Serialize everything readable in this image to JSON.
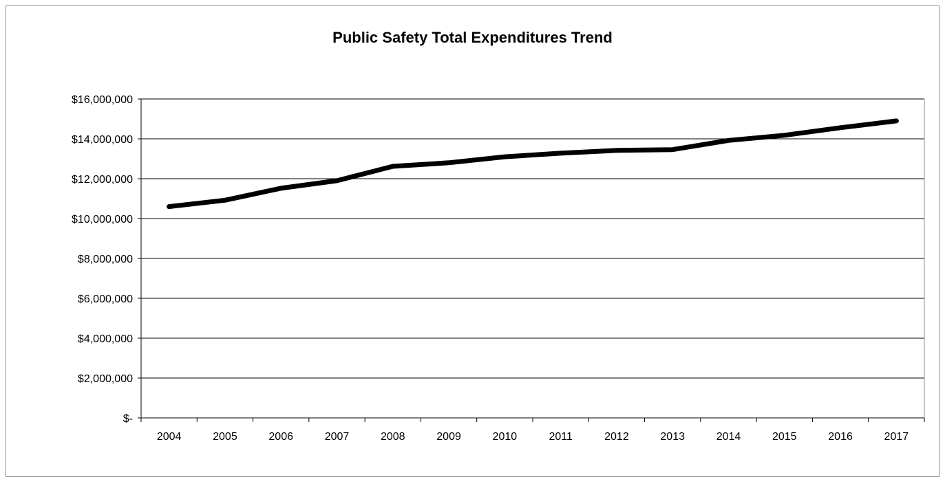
{
  "chart_data": {
    "type": "line",
    "title": "Public Safety Total Expenditures Trend",
    "xlabel": "",
    "ylabel": "",
    "categories": [
      "2004",
      "2005",
      "2006",
      "2007",
      "2008",
      "2009",
      "2010",
      "2011",
      "2012",
      "2013",
      "2014",
      "2015",
      "2016",
      "2017"
    ],
    "series": [
      {
        "values": [
          10600000,
          10920000,
          11520000,
          11900000,
          12620000,
          12800000,
          13100000,
          13280000,
          13420000,
          13460000,
          13920000,
          14180000,
          14560000,
          14900000
        ],
        "color": "#000000"
      }
    ],
    "ylim": [
      0,
      16000000
    ],
    "y_ticks": [
      0,
      2000000,
      4000000,
      6000000,
      8000000,
      10000000,
      12000000,
      14000000,
      16000000
    ],
    "y_tick_labels": [
      "$-",
      "$2,000,000",
      "$4,000,000",
      "$6,000,000",
      "$8,000,000",
      "$10,000,000",
      "$12,000,000",
      "$14,000,000",
      "$16,000,000"
    ],
    "grid": true,
    "legend": "none"
  }
}
